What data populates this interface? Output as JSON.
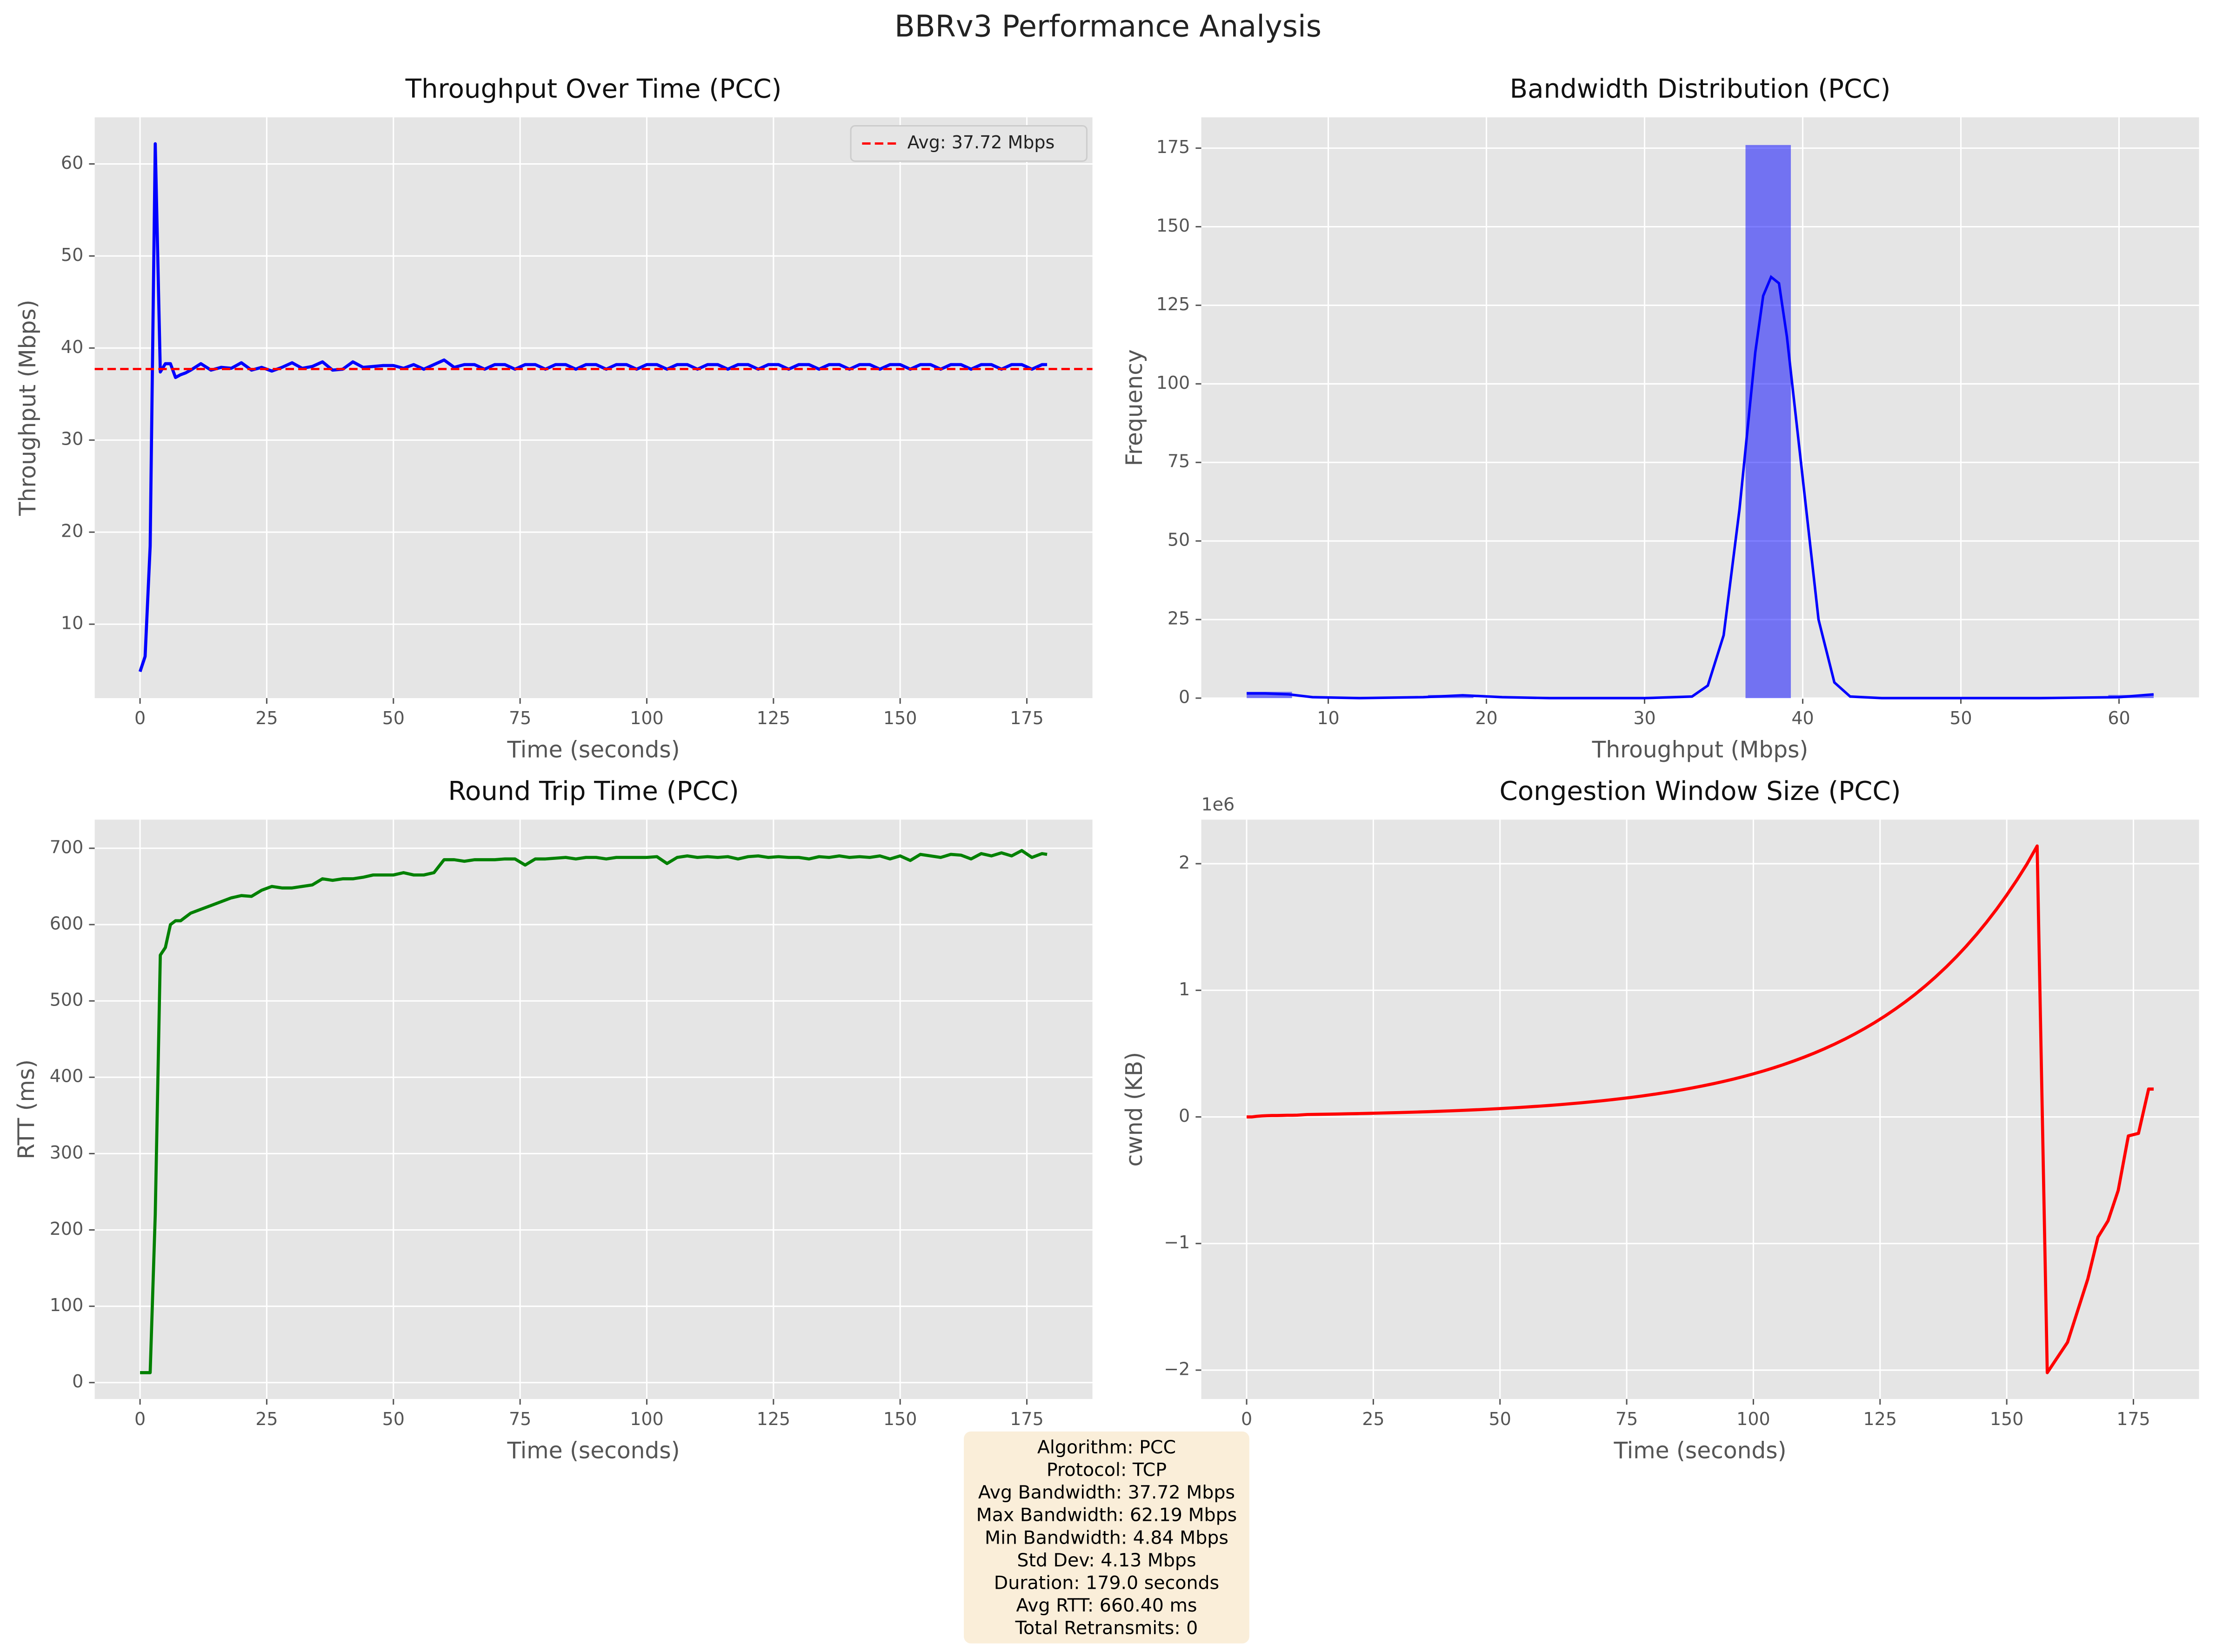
{
  "title": "BBRv3 Performance Analysis",
  "chart_data": [
    {
      "type": "line",
      "title": "Throughput Over Time (PCC)",
      "xlabel": "Time (seconds)",
      "ylabel": "Throughput (Mbps)",
      "x": [
        0,
        1,
        2,
        3,
        4,
        5,
        6,
        7,
        8,
        9,
        10,
        12,
        14,
        16,
        18,
        20,
        22,
        24,
        26,
        28,
        30,
        32,
        34,
        36,
        38,
        40,
        42,
        44,
        46,
        48,
        50,
        52,
        54,
        56,
        58,
        60,
        62,
        64,
        66,
        68,
        70,
        72,
        74,
        76,
        78,
        80,
        82,
        84,
        86,
        88,
        90,
        92,
        94,
        96,
        98,
        100,
        102,
        104,
        106,
        108,
        110,
        112,
        114,
        116,
        118,
        120,
        122,
        124,
        126,
        128,
        130,
        132,
        134,
        136,
        138,
        140,
        142,
        144,
        146,
        148,
        150,
        152,
        154,
        156,
        158,
        160,
        162,
        164,
        166,
        168,
        170,
        172,
        174,
        176,
        178,
        179
      ],
      "series": [
        {
          "color": "#0000ff",
          "values": [
            4.84,
            6.5,
            18.5,
            62.19,
            37.4,
            38.3,
            38.3,
            36.8,
            37.1,
            37.3,
            37.6,
            38.3,
            37.6,
            37.9,
            37.8,
            38.4,
            37.6,
            37.9,
            37.5,
            37.9,
            38.4,
            37.8,
            38.0,
            38.5,
            37.6,
            37.7,
            38.5,
            37.9,
            38.0,
            38.1,
            38.1,
            37.8,
            38.2,
            37.7,
            38.2,
            38.7,
            37.9,
            38.2,
            38.2,
            37.7,
            38.2,
            38.2,
            37.7,
            38.2,
            38.2,
            37.7,
            38.2,
            38.2,
            37.7,
            38.2,
            38.2,
            37.7,
            38.2,
            38.2,
            37.7,
            38.2,
            38.2,
            37.7,
            38.2,
            38.2,
            37.7,
            38.2,
            38.2,
            37.7,
            38.2,
            38.2,
            37.7,
            38.2,
            38.2,
            37.7,
            38.2,
            38.2,
            37.7,
            38.2,
            38.2,
            37.7,
            38.2,
            38.2,
            37.7,
            38.2,
            38.2,
            37.7,
            38.2,
            38.2,
            37.7,
            38.2,
            38.2,
            37.7,
            38.2,
            38.2,
            37.7,
            38.2,
            38.2,
            37.7,
            38.2,
            38.2
          ]
        }
      ],
      "hlines": [
        {
          "value": 37.72,
          "label": "Avg: 37.72 Mbps",
          "color": "#ff0000",
          "style": "dashed"
        }
      ],
      "legend": "upper right",
      "xlim": [
        -8.95,
        187.95
      ],
      "ylim": [
        1.97,
        65.06
      ],
      "xticks": [
        0,
        25,
        50,
        75,
        100,
        125,
        150,
        175
      ],
      "yticks": [
        10,
        20,
        30,
        40,
        50,
        60
      ],
      "grid": true
    },
    {
      "type": "histogram",
      "title": "Bandwidth Distribution (PCC)",
      "xlabel": "Throughput (Mbps)",
      "ylabel": "Frequency",
      "bins": [
        4.84,
        7.7075,
        10.575,
        13.4425,
        16.31,
        19.1775,
        22.045,
        24.9125,
        27.78,
        30.6475,
        33.515,
        36.3825,
        39.25,
        42.1175,
        44.985,
        47.8525,
        50.72,
        53.5875,
        56.455,
        59.3225,
        62.19
      ],
      "values": [
        2,
        0,
        0,
        0,
        1,
        0,
        0,
        0,
        0,
        0,
        0,
        176,
        0,
        0,
        0,
        0,
        0,
        0,
        0,
        1
      ],
      "color": "#0000ff",
      "opacity": 0.5,
      "kde": {
        "color": "#0000ff",
        "x": [
          4.84,
          6,
          7.5,
          9,
          12,
          16,
          18.5,
          21,
          24,
          30,
          33,
          34,
          35,
          36,
          37,
          37.5,
          38,
          38.5,
          39,
          40,
          41,
          42,
          43,
          45,
          55,
          60,
          62.19
        ],
        "values": [
          1.5,
          1.5,
          1.2,
          0.3,
          0,
          0.3,
          0.9,
          0.3,
          0,
          0,
          0.5,
          4,
          20,
          60,
          110,
          128,
          134,
          132,
          115,
          70,
          25,
          5,
          0.5,
          0,
          0,
          0.3,
          1.2
        ]
      },
      "xlim": [
        1.97,
        65.06
      ],
      "ylim": [
        0,
        184.8
      ],
      "xticks": [
        10,
        20,
        30,
        40,
        50,
        60
      ],
      "yticks": [
        0,
        25,
        50,
        75,
        100,
        125,
        150,
        175
      ],
      "grid": true
    },
    {
      "type": "line",
      "title": "Round Trip Time (PCC)",
      "xlabel": "Time (seconds)",
      "ylabel": "RTT (ms)",
      "x": [
        0,
        1,
        2,
        3,
        4,
        5,
        6,
        7,
        8,
        9,
        10,
        12,
        14,
        16,
        18,
        20,
        22,
        24,
        26,
        28,
        30,
        32,
        34,
        36,
        38,
        40,
        42,
        44,
        46,
        48,
        50,
        52,
        54,
        56,
        58,
        60,
        62,
        64,
        66,
        68,
        70,
        72,
        74,
        76,
        78,
        80,
        82,
        84,
        86,
        88,
        90,
        92,
        94,
        96,
        98,
        100,
        102,
        104,
        106,
        108,
        110,
        112,
        114,
        116,
        118,
        120,
        122,
        124,
        126,
        128,
        130,
        132,
        134,
        136,
        138,
        140,
        142,
        144,
        146,
        148,
        150,
        152,
        154,
        156,
        158,
        160,
        162,
        164,
        166,
        168,
        170,
        172,
        174,
        176,
        178,
        179
      ],
      "series": [
        {
          "color": "#008000",
          "values": [
            13,
            13,
            13,
            220,
            560,
            570,
            600,
            605,
            605,
            610,
            615,
            620,
            625,
            630,
            635,
            638,
            637,
            645,
            650,
            648,
            648,
            650,
            652,
            660,
            658,
            660,
            660,
            662,
            665,
            665,
            665,
            668,
            665,
            665,
            668,
            685,
            685,
            683,
            685,
            685,
            685,
            686,
            686,
            678,
            686,
            686,
            687,
            688,
            686,
            688,
            688,
            686,
            688,
            688,
            688,
            688,
            689,
            680,
            688,
            690,
            688,
            689,
            688,
            689,
            686,
            689,
            690,
            688,
            689,
            688,
            688,
            686,
            689,
            688,
            690,
            688,
            689,
            688,
            690,
            686,
            690,
            684,
            692,
            690,
            688,
            692,
            691,
            686,
            693,
            690,
            694,
            690,
            697,
            688,
            693,
            692
          ]
        }
      ],
      "xlim": [
        -8.95,
        187.95
      ],
      "ylim": [
        -21.5,
        737.5
      ],
      "xticks": [
        0,
        25,
        50,
        75,
        100,
        125,
        150,
        175
      ],
      "yticks": [
        0,
        100,
        200,
        300,
        400,
        500,
        600,
        700
      ],
      "grid": true
    },
    {
      "type": "line",
      "title": "Congestion Window Size (PCC)",
      "xlabel": "Time (seconds)",
      "ylabel": "cwnd (KB)",
      "x": [
        0,
        1,
        2,
        3,
        4,
        5,
        6,
        7,
        8,
        9,
        10,
        12,
        14,
        16,
        18,
        20,
        22,
        24,
        26,
        28,
        30,
        32,
        34,
        36,
        38,
        40,
        42,
        44,
        46,
        48,
        50,
        52,
        54,
        56,
        58,
        60,
        62,
        64,
        66,
        68,
        70,
        72,
        74,
        76,
        78,
        80,
        82,
        84,
        86,
        88,
        90,
        92,
        94,
        96,
        98,
        100,
        102,
        104,
        106,
        108,
        110,
        112,
        114,
        116,
        118,
        120,
        122,
        124,
        126,
        128,
        130,
        132,
        134,
        136,
        138,
        140,
        142,
        144,
        146,
        148,
        150,
        152,
        154,
        156,
        158,
        160,
        162,
        164,
        166,
        168,
        170,
        172,
        174,
        176,
        178,
        179
      ],
      "series": [
        {
          "color": "#ff0000",
          "values": [
            0,
            0,
            5000,
            8000,
            10000,
            11000,
            11000,
            12000,
            13000,
            13000,
            14000,
            19000,
            20300,
            21600,
            23100,
            24700,
            26300,
            28100,
            30000,
            32100,
            34200,
            36500,
            39000,
            41700,
            44500,
            47500,
            50700,
            54200,
            57800,
            61800,
            65900,
            70400,
            75200,
            80300,
            85700,
            91500,
            97700,
            104400,
            111400,
            119000,
            127100,
            135700,
            144900,
            154700,
            165200,
            176400,
            188400,
            201100,
            214800,
            229400,
            244900,
            261500,
            279200,
            298100,
            318300,
            340000,
            363000,
            387600,
            413800,
            441900,
            471800,
            503800,
            538000,
            574500,
            613400,
            655000,
            699400,
            746900,
            797400,
            851600,
            909300,
            970900,
            1036800,
            1107100,
            1182100,
            1262200,
            1347800,
            1439200,
            1536800,
            1641000,
            1752200,
            1871000,
            1997800,
            2140000,
            -2020000,
            -1900000,
            -1780000,
            -1530000,
            -1280000,
            -950000,
            -820000,
            -580000,
            -150000,
            -130000,
            220000,
            220000
          ]
        }
      ],
      "y_offset_label": "1e6",
      "xlim": [
        -8.95,
        187.95
      ],
      "ylim": [
        -2228000,
        2348000
      ],
      "xticks": [
        0,
        25,
        50,
        75,
        100,
        125,
        150,
        175
      ],
      "yticks": [
        {
          "value": -2000000,
          "label": "−2"
        },
        {
          "value": -1000000,
          "label": "−1"
        },
        {
          "value": 0,
          "label": "0"
        },
        {
          "value": 1000000,
          "label": "1"
        },
        {
          "value": 2000000,
          "label": "2"
        }
      ],
      "grid": true
    }
  ],
  "stats_box": [
    "Algorithm: PCC",
    "Protocol: TCP",
    "Avg Bandwidth: 37.72 Mbps",
    "Max Bandwidth: 62.19 Mbps",
    "Min Bandwidth: 4.84 Mbps",
    "Std Dev: 4.13 Mbps",
    "Duration: 179.0 seconds",
    "Avg RTT: 660.40 ms",
    "Total Retransmits: 0"
  ]
}
